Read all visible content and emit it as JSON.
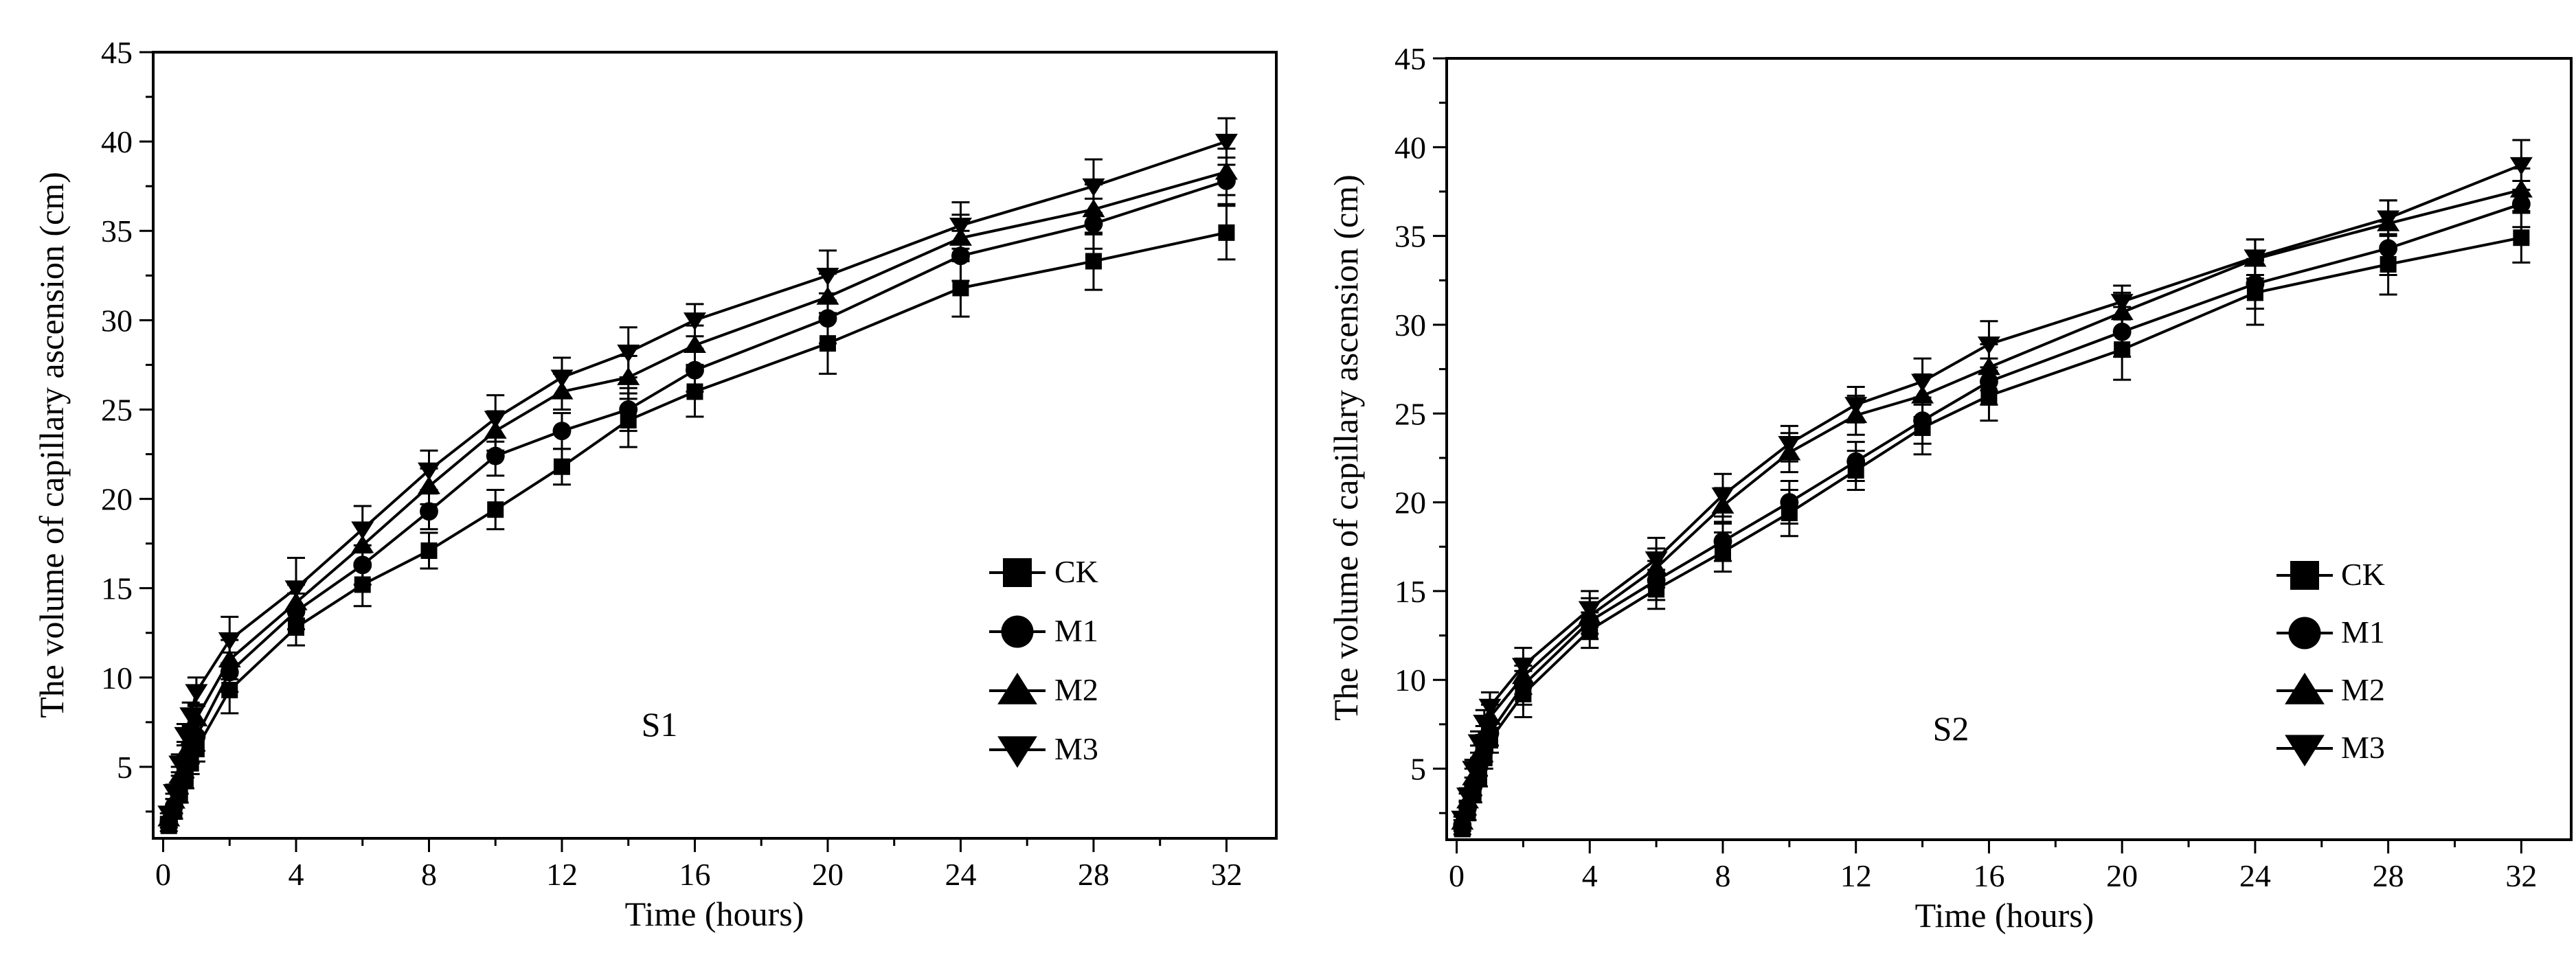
{
  "chart_data": [
    {
      "type": "line",
      "annotation": "S1",
      "xlabel": "Time (hours)",
      "ylabel": "The volume of capillary ascension  (cm)",
      "xlim": [
        -0.3,
        33.5
      ],
      "ylim": [
        1,
        45
      ],
      "xticks": [
        0,
        4,
        8,
        12,
        16,
        20,
        24,
        28,
        32
      ],
      "yticks": [
        5,
        10,
        15,
        20,
        25,
        30,
        35,
        40,
        45
      ],
      "legend_position": "bottom-right",
      "x": [
        0.17,
        0.33,
        0.5,
        0.67,
        0.83,
        1,
        2,
        4,
        6,
        8,
        10,
        12,
        14,
        16,
        20,
        24,
        28,
        32
      ],
      "series": [
        {
          "name": "CK",
          "marker": "square",
          "values": [
            1.7,
            2.5,
            3.5,
            4.3,
            5.2,
            6.0,
            9.3,
            12.8,
            15.2,
            17.1,
            19.4,
            21.8,
            24.4,
            26.0,
            28.7,
            31.8,
            33.3,
            34.9
          ],
          "errors": [
            0.3,
            0.4,
            0.5,
            0.5,
            0.6,
            0.7,
            1.3,
            1.0,
            1.2,
            1.0,
            1.1,
            1.0,
            1.5,
            1.4,
            1.7,
            1.6,
            1.6,
            1.5
          ]
        },
        {
          "name": "M1",
          "marker": "circle",
          "values": [
            1.9,
            2.8,
            4.0,
            5.0,
            5.8,
            6.7,
            10.3,
            13.7,
            16.3,
            19.3,
            22.4,
            23.8,
            25.0,
            27.2,
            30.1,
            33.6,
            35.4,
            37.8
          ],
          "errors": [
            0.3,
            0.4,
            0.5,
            0.6,
            0.6,
            0.8,
            1.1,
            1.0,
            1.1,
            1.0,
            1.1,
            1.0,
            1.2,
            1.2,
            1.4,
            1.4,
            1.4,
            1.3
          ]
        },
        {
          "name": "M2",
          "marker": "triangle-up",
          "values": [
            2.1,
            3.1,
            4.5,
            5.8,
            6.6,
            7.7,
            11.0,
            14.2,
            17.4,
            20.7,
            23.8,
            26.0,
            26.8,
            28.6,
            31.3,
            34.6,
            36.2,
            38.3
          ],
          "errors": [
            0.3,
            0.4,
            0.5,
            0.6,
            0.7,
            0.8,
            1.1,
            1.0,
            1.2,
            1.0,
            1.1,
            1.0,
            1.2,
            1.1,
            1.3,
            1.3,
            1.4,
            1.3
          ]
        },
        {
          "name": "M3",
          "marker": "triangle-down",
          "values": [
            2.4,
            3.6,
            5.2,
            6.8,
            7.9,
            9.2,
            12.1,
            15.0,
            18.3,
            21.6,
            24.5,
            26.8,
            28.2,
            30.0,
            32.5,
            35.3,
            37.5,
            40.0
          ],
          "errors": [
            0.3,
            0.4,
            0.5,
            0.6,
            0.7,
            0.8,
            1.3,
            1.7,
            1.3,
            1.1,
            1.3,
            1.1,
            1.4,
            0.9,
            1.4,
            1.3,
            1.5,
            1.3
          ]
        }
      ]
    },
    {
      "type": "line",
      "annotation": "S2",
      "xlabel": "Time (hours)",
      "ylabel": "The volume of capillary ascension (cm)",
      "xlim": [
        -0.3,
        33.5
      ],
      "ylim": [
        1,
        45
      ],
      "xticks": [
        0,
        4,
        8,
        12,
        16,
        20,
        24,
        28,
        32
      ],
      "yticks": [
        5,
        10,
        15,
        20,
        25,
        30,
        35,
        40,
        45
      ],
      "legend_position": "bottom-right",
      "x": [
        0.17,
        0.33,
        0.5,
        0.67,
        0.83,
        1,
        2,
        4,
        6,
        8,
        10,
        12,
        14,
        16,
        20,
        24,
        28,
        32
      ],
      "series": [
        {
          "name": "CK",
          "marker": "square",
          "values": [
            1.6,
            2.5,
            3.6,
            4.5,
            5.6,
            6.6,
            9.2,
            12.8,
            15.1,
            17.2,
            19.4,
            21.8,
            24.2,
            26.0,
            28.6,
            31.8,
            33.4,
            34.9
          ],
          "errors": [
            0.3,
            0.4,
            0.5,
            0.5,
            0.6,
            0.7,
            1.3,
            1.0,
            1.1,
            1.1,
            1.3,
            1.1,
            1.5,
            1.4,
            1.7,
            1.8,
            1.7,
            1.4
          ]
        },
        {
          "name": "M1",
          "marker": "circle",
          "values": [
            1.8,
            2.8,
            4.0,
            5.1,
            6.0,
            7.0,
            9.7,
            13.3,
            15.6,
            17.8,
            20.0,
            22.3,
            24.6,
            26.8,
            29.6,
            32.3,
            34.3,
            36.8
          ],
          "errors": [
            0.3,
            0.4,
            0.5,
            0.5,
            0.6,
            0.7,
            1.1,
            1.0,
            1.1,
            1.1,
            1.2,
            1.1,
            1.3,
            1.3,
            1.4,
            1.4,
            1.5,
            1.3
          ]
        },
        {
          "name": "M2",
          "marker": "triangle-up",
          "values": [
            2.0,
            3.2,
            4.5,
            5.8,
            6.8,
            7.9,
            10.2,
            13.6,
            16.3,
            19.8,
            22.8,
            24.9,
            26.0,
            27.6,
            30.7,
            33.7,
            35.7,
            37.6
          ],
          "errors": [
            0.3,
            0.4,
            0.5,
            0.5,
            0.6,
            0.7,
            1.0,
            1.0,
            1.1,
            1.0,
            1.1,
            1.1,
            1.2,
            1.3,
            1.1,
            1.1,
            1.3,
            1.2
          ]
        },
        {
          "name": "M3",
          "marker": "triangle-down",
          "values": [
            2.2,
            3.5,
            5.0,
            6.5,
            7.6,
            8.5,
            10.8,
            14.0,
            16.8,
            20.4,
            23.3,
            25.5,
            26.8,
            28.9,
            31.3,
            33.8,
            36.0,
            39.0
          ],
          "errors": [
            0.3,
            0.4,
            0.5,
            0.6,
            0.7,
            0.8,
            1.0,
            1.0,
            1.2,
            1.2,
            1.0,
            1.0,
            1.3,
            1.3,
            0.9,
            1.0,
            1.0,
            1.4
          ]
        }
      ]
    }
  ]
}
